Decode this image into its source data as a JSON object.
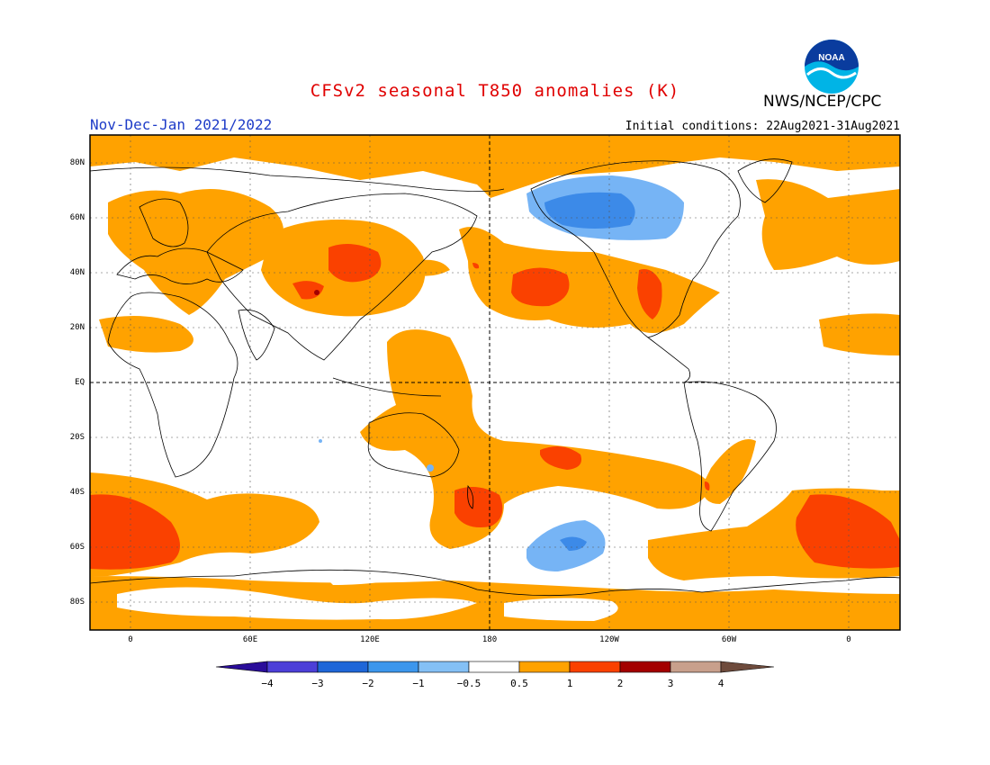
{
  "header": {
    "title": "CFSv2 seasonal T850 anomalies (K)",
    "agency": "NWS/NCEP/CPC",
    "season": "Nov-Dec-Jan 2021/2022",
    "init_conditions": "Initial conditions: 22Aug2021-31Aug2021"
  },
  "logo": {
    "text": "NOAA",
    "icon": "noaa-logo-icon"
  },
  "map": {
    "lat_labels": [
      "80N",
      "60N",
      "40N",
      "20N",
      "EQ",
      "20S",
      "40S",
      "60S",
      "80S"
    ],
    "lon_labels": [
      "0",
      "60E",
      "120E",
      "180",
      "120W",
      "60W",
      "0"
    ]
  },
  "colorbar": {
    "labels": [
      "-4",
      "-3",
      "-2",
      "-1",
      "-0.5",
      "0.5",
      "1",
      "2",
      "3",
      "4"
    ],
    "colors": [
      "#2a0d9a",
      "#4c3fd8",
      "#1e66d8",
      "#3c96ec",
      "#84c0f5",
      "#ffffff",
      "#ffa200",
      "#fa4100",
      "#a30000",
      "#c8a08c",
      "#6e4b3c"
    ]
  },
  "colors": {
    "light_orange": "#ffa200",
    "red_orange": "#fa4100",
    "dark_red": "#a30000",
    "light_blue": "#76b4f5",
    "mid_blue": "#3c8ae8",
    "title_red": "#e00000",
    "season_blue": "#1e3cc8"
  }
}
